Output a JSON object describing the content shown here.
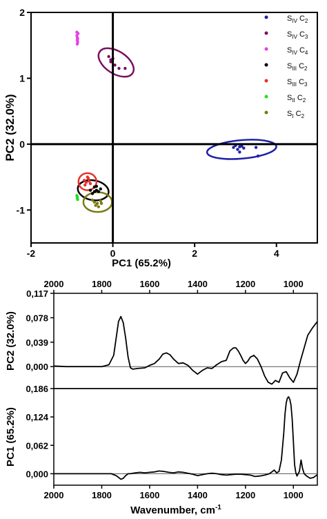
{
  "chart_data": [
    {
      "type": "scatter",
      "xlabel": "PC1 (65.2%)",
      "ylabel": "PC2 (32.0%)",
      "xlim": [
        -2,
        5
      ],
      "ylim": [
        -1.5,
        2
      ],
      "xticks": [
        "-2",
        "0",
        "2",
        "4"
      ],
      "yticks": [
        "-1",
        "0",
        "1",
        "2"
      ],
      "grid": false,
      "legend_position": "top-right",
      "series": [
        {
          "label": {
            "main": "S",
            "sub1": "IV",
            "mid": " C",
            "sub2": "2"
          },
          "color": "#1f1fa8",
          "points": [
            [
              2.95,
              -0.05
            ],
            [
              3.0,
              -0.02
            ],
            [
              3.05,
              -0.08
            ],
            [
              3.1,
              -0.04
            ],
            [
              3.15,
              -0.03
            ],
            [
              3.2,
              -0.06
            ],
            [
              3.5,
              -0.05
            ],
            [
              3.55,
              -0.18
            ],
            [
              3.1,
              -0.12
            ]
          ],
          "ellipse": {
            "center": [
              3.15,
              -0.08
            ],
            "radii": [
              0.85,
              0.14
            ],
            "angle_deg": -5
          }
        },
        {
          "label": {
            "main": "S",
            "sub1": "IV",
            "mid": " C",
            "sub2": "3"
          },
          "color": "#7a1060",
          "points": [
            [
              -0.1,
              1.33
            ],
            [
              -0.05,
              1.28
            ],
            [
              0.0,
              1.3
            ],
            [
              0.05,
              1.2
            ],
            [
              0.15,
              1.15
            ],
            [
              0.3,
              1.15
            ],
            [
              -0.05,
              1.25
            ]
          ],
          "ellipse": {
            "center": [
              0.08,
              1.24
            ],
            "radii": [
              0.48,
              0.17
            ],
            "angle_deg": 33
          }
        },
        {
          "label": {
            "main": "S",
            "sub1": "IV",
            "mid": " C",
            "sub2": "4"
          },
          "color": "#e53fe5",
          "points": [
            [
              -0.88,
              1.7
            ],
            [
              -0.88,
              1.65
            ],
            [
              -0.87,
              1.62
            ],
            [
              -0.87,
              1.58
            ],
            [
              -0.86,
              1.55
            ],
            [
              -0.85,
              1.68
            ],
            [
              -0.86,
              1.6
            ],
            [
              -0.87,
              1.52
            ]
          ]
        },
        {
          "label": {
            "main": "S",
            "sub1": "III",
            "mid": " C",
            "sub2": "2"
          },
          "color": "#000000",
          "points": [
            [
              -0.55,
              -0.7
            ],
            [
              -0.45,
              -0.65
            ],
            [
              -0.4,
              -0.7
            ],
            [
              -0.35,
              -0.72
            ],
            [
              -0.5,
              -0.75
            ],
            [
              -0.3,
              -0.68
            ],
            [
              -0.45,
              -0.72
            ],
            [
              -0.4,
              -0.64
            ]
          ],
          "ellipse": {
            "center": [
              -0.48,
              -0.7
            ],
            "radii": [
              0.38,
              0.15
            ],
            "angle_deg": 10
          }
        },
        {
          "label": {
            "main": "S",
            "sub1": "III",
            "mid": " C",
            "sub2": "3"
          },
          "color": "#e8312a",
          "points": [
            [
              -0.7,
              -0.55
            ],
            [
              -0.65,
              -0.58
            ],
            [
              -0.6,
              -0.52
            ],
            [
              -0.55,
              -0.6
            ],
            [
              -0.68,
              -0.62
            ],
            [
              -0.58,
              -0.56
            ],
            [
              -0.62,
              -0.5
            ]
          ],
          "ellipse": {
            "center": [
              -0.62,
              -0.57
            ],
            "radii": [
              0.22,
              0.13
            ],
            "angle_deg": 0
          }
        },
        {
          "label": {
            "main": "S",
            "sub1": "II",
            "mid": " C",
            "sub2": "2"
          },
          "color": "#22dd22",
          "points": [
            [
              -0.88,
              -0.78
            ],
            [
              -0.87,
              -0.8
            ],
            [
              -0.86,
              -0.84
            ],
            [
              -0.87,
              -0.82
            ]
          ]
        },
        {
          "label": {
            "main": "S",
            "sub1": "I",
            "mid": " C",
            "sub2": "2"
          },
          "color": "#7a7a10",
          "points": [
            [
              -0.5,
              -0.85
            ],
            [
              -0.45,
              -0.88
            ],
            [
              -0.38,
              -0.9
            ],
            [
              -0.35,
              -0.95
            ],
            [
              -0.28,
              -0.9
            ],
            [
              -0.42,
              -0.93
            ],
            [
              -0.3,
              -0.86
            ]
          ],
          "ellipse": {
            "center": [
              -0.37,
              -0.88
            ],
            "radii": [
              0.35,
              0.15
            ],
            "angle_deg": 0
          }
        }
      ]
    },
    {
      "type": "line",
      "title": "",
      "xlabel": "Wavenumber, cm",
      "xlabel_sup": "-1",
      "xlim": [
        2000,
        900
      ],
      "xticks": [
        "2000",
        "1800",
        "1600",
        "1400",
        "1200",
        "1000"
      ],
      "panels": [
        {
          "name": "PC2 (32.0%)",
          "ylim": [
            -0.035,
            0.117
          ],
          "yticks": [
            "0,000",
            "0,039",
            "0,078",
            "0,117"
          ],
          "zero_line": true,
          "x": [
            2000,
            1950,
            1900,
            1850,
            1800,
            1770,
            1750,
            1740,
            1730,
            1720,
            1710,
            1700,
            1690,
            1680,
            1670,
            1650,
            1620,
            1600,
            1580,
            1560,
            1545,
            1530,
            1515,
            1500,
            1480,
            1460,
            1440,
            1420,
            1400,
            1380,
            1360,
            1340,
            1320,
            1300,
            1280,
            1265,
            1250,
            1240,
            1230,
            1220,
            1210,
            1200,
            1190,
            1180,
            1165,
            1150,
            1135,
            1120,
            1105,
            1090,
            1075,
            1060,
            1045,
            1030,
            1015,
            1000,
            985,
            970,
            955,
            940,
            920,
            900
          ],
          "y": [
            0.001,
            0.0,
            0.0,
            0.0,
            0.0,
            0.003,
            0.018,
            0.045,
            0.072,
            0.08,
            0.07,
            0.045,
            0.015,
            -0.002,
            -0.004,
            -0.003,
            -0.002,
            0.002,
            0.005,
            0.012,
            0.02,
            0.022,
            0.019,
            0.012,
            0.005,
            0.006,
            0.002,
            -0.006,
            -0.012,
            -0.006,
            -0.002,
            -0.003,
            0.003,
            0.008,
            0.01,
            0.025,
            0.03,
            0.03,
            0.025,
            0.018,
            0.01,
            0.005,
            0.009,
            0.015,
            0.018,
            0.012,
            0.0,
            -0.015,
            -0.025,
            -0.028,
            -0.022,
            -0.025,
            -0.01,
            -0.008,
            -0.018,
            -0.025,
            -0.012,
            0.01,
            0.03,
            0.05,
            0.062,
            0.072
          ]
        },
        {
          "name": "PC1 (65.2%)",
          "ylim": [
            -0.025,
            0.186
          ],
          "yticks": [
            "0,000",
            "0,062",
            "0,124",
            "0,186"
          ],
          "zero_line": true,
          "x": [
            2000,
            1950,
            1900,
            1850,
            1800,
            1760,
            1740,
            1730,
            1720,
            1710,
            1700,
            1690,
            1680,
            1660,
            1640,
            1620,
            1600,
            1580,
            1560,
            1540,
            1520,
            1500,
            1480,
            1460,
            1440,
            1420,
            1400,
            1380,
            1360,
            1340,
            1320,
            1300,
            1280,
            1260,
            1240,
            1220,
            1200,
            1180,
            1160,
            1140,
            1120,
            1100,
            1090,
            1080,
            1070,
            1060,
            1050,
            1040,
            1035,
            1030,
            1025,
            1020,
            1015,
            1010,
            1005,
            1000,
            995,
            990,
            985,
            975,
            968,
            962,
            955,
            945,
            930,
            915,
            900
          ],
          "y": [
            0.0,
            0.0,
            0.0,
            0.0,
            0.0,
            0.0,
            -0.004,
            -0.008,
            -0.012,
            -0.01,
            -0.004,
            0.0,
            0.0,
            0.002,
            0.003,
            0.002,
            0.003,
            0.004,
            0.006,
            0.005,
            0.003,
            0.002,
            0.004,
            0.003,
            0.001,
            -0.001,
            -0.004,
            -0.002,
            0.0,
            0.001,
            0.0,
            -0.002,
            -0.003,
            -0.002,
            -0.001,
            -0.001,
            -0.002,
            -0.003,
            -0.006,
            -0.005,
            -0.003,
            0.0,
            0.004,
            0.008,
            0.002,
            0.005,
            0.03,
            0.09,
            0.13,
            0.155,
            0.165,
            0.168,
            0.162,
            0.15,
            0.12,
            0.07,
            0.02,
            0.003,
            -0.005,
            0.005,
            0.03,
            0.012,
            0.0,
            -0.005,
            -0.01,
            -0.008,
            -0.002
          ]
        }
      ]
    }
  ]
}
